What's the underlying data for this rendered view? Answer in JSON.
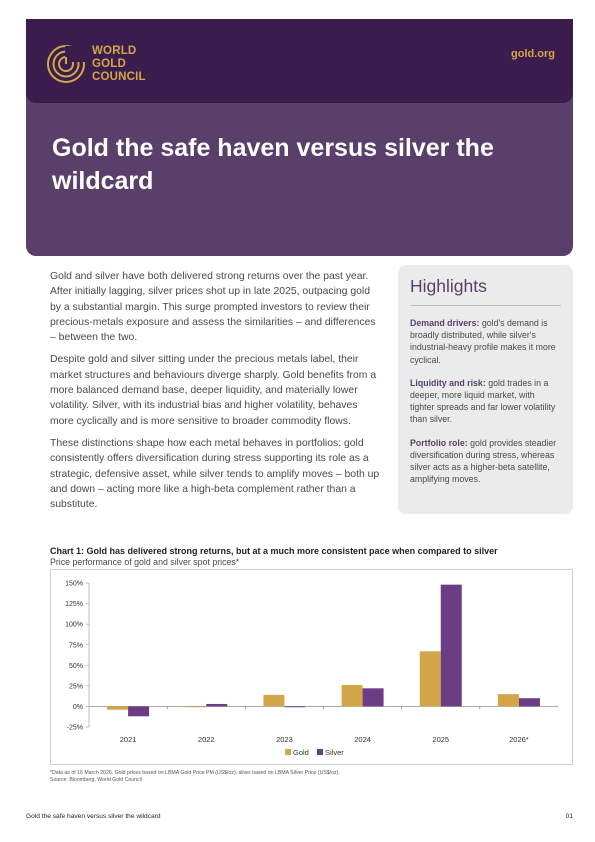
{
  "header": {
    "brand_line1": "WORLD",
    "brand_line2": "GOLD",
    "brand_line3": "COUNCIL",
    "site": "gold.org"
  },
  "title": "Gold the safe haven versus silver the wildcard",
  "body": {
    "p1": "Gold and silver have both delivered strong returns over the past year. After initially lagging, silver prices shot up in late 2025, outpacing gold by a substantial margin. This surge prompted investors to review their precious-metals exposure and assess the similarities – and differences – between the two.",
    "p2": "Despite gold and silver sitting under the precious metals label, their market structures and behaviours diverge sharply. Gold benefits from a more balanced demand base, deeper liquidity, and materially lower volatility. Silver, with its industrial bias and higher volatility, behaves more cyclically and is more sensitive to broader commodity flows.",
    "p3": "These distinctions shape how each metal behaves in portfolios: gold consistently offers diversification during stress supporting its role as a strategic, defensive asset, while silver tends to amplify moves – both up and down – acting more like a high-beta complement rather than a substitute."
  },
  "highlights": {
    "title": "Highlights",
    "items": [
      {
        "head": "Demand drivers:",
        "text": " gold's demand is broadly distributed, while silver's industrial-heavy profile makes it more cyclical."
      },
      {
        "head": "Liquidity and risk:",
        "text": " gold trades in a deeper, more liquid market, with tighter spreads and far lower volatility than silver."
      },
      {
        "head": "Portfolio role:",
        "text": " gold provides steadier diversification during stress, whereas silver acts as a higher-beta satellite, amplifying moves."
      }
    ]
  },
  "chart_data": {
    "type": "bar",
    "title": "Chart 1: Gold has delivered strong returns, but at a much more consistent pace when compared to silver",
    "subtitle": "Price performance of gold and silver spot prices*",
    "categories": [
      "2021",
      "2022",
      "2023",
      "2024",
      "2025",
      "2026*"
    ],
    "series": [
      {
        "name": "Gold",
        "values": [
          -4,
          -0.5,
          14,
          26,
          67,
          15
        ],
        "color": "#d4a64a"
      },
      {
        "name": "Silver",
        "values": [
          -12,
          3,
          -0.5,
          22,
          148,
          10
        ],
        "color": "#6b3d84"
      }
    ],
    "ylim": [
      -25,
      150
    ],
    "yticks": [
      -25,
      0,
      25,
      50,
      75,
      100,
      125,
      150
    ],
    "ytick_labels": [
      "-25%",
      "0%",
      "25%",
      "50%",
      "75%",
      "100%",
      "125%",
      "150%"
    ],
    "grid": false,
    "legend": "bottom-center"
  },
  "footnote": {
    "line1": "*Data as of 16 March 2026. Gold prices based on LBMA Gold Price PM (US$/oz), silver based on LBMA Silver Price (US$/oz).",
    "line2": "Source: Bloomberg, World Gold Council"
  },
  "footer": {
    "left": "Gold the safe haven versus silver the wildcard",
    "page": "01"
  }
}
